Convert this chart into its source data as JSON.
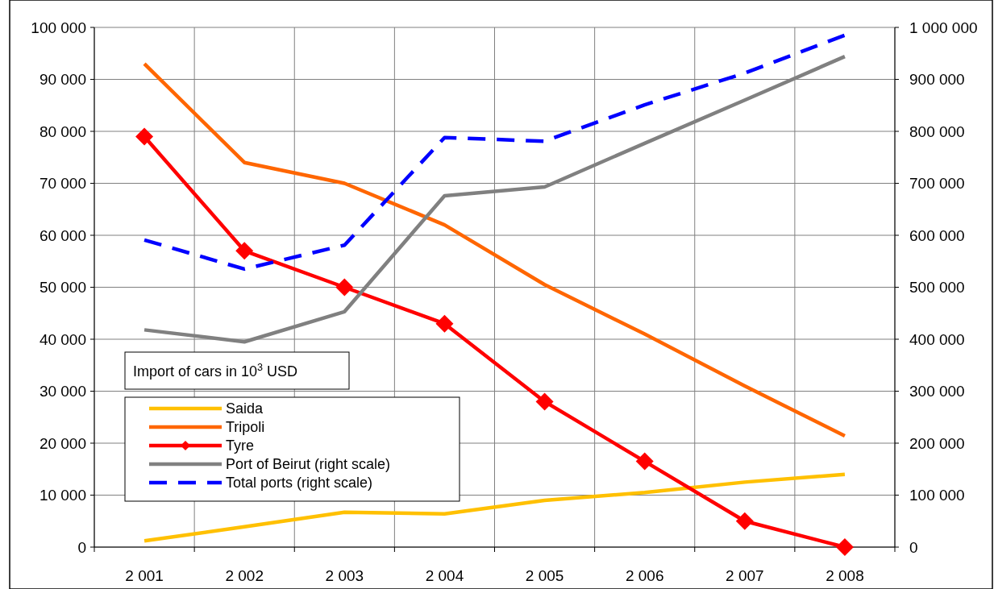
{
  "chart_data": {
    "type": "line",
    "categories": [
      "2 001",
      "2 002",
      "2 003",
      "2 004",
      "2 005",
      "2 006",
      "2 007",
      "2 008"
    ],
    "series": [
      {
        "name": "Saida",
        "color": "#ffc000",
        "values": [
          1200,
          3900,
          6700,
          6400,
          9000,
          10500,
          12500,
          14000
        ]
      },
      {
        "name": "Tripoli",
        "color": "#ff6600",
        "values": [
          93000,
          74000,
          70000,
          62000,
          50500,
          41000,
          31000,
          21400
        ]
      },
      {
        "name": "Tyre",
        "color": "#ff0000",
        "marker": "diamond",
        "values": [
          79000,
          57000,
          50000,
          43000,
          28000,
          16500,
          5000,
          0
        ]
      },
      {
        "name": "Port of Beirut (right scale)",
        "color": "#808080",
        "axis": "y2",
        "values": [
          418000,
          395000,
          453000,
          676000,
          693000,
          777000,
          860000,
          944000
        ]
      },
      {
        "name": "Total ports (right scale)",
        "color": "#0000ff",
        "axis": "y2",
        "line_style": "dashed",
        "values": [
          591000,
          535000,
          581000,
          788000,
          781000,
          851000,
          912000,
          985000
        ]
      }
    ],
    "ylim": [
      0,
      100000
    ],
    "yticks": [
      {
        "value": 0,
        "label": "0"
      },
      {
        "value": 10000,
        "label": "10 000"
      },
      {
        "value": 20000,
        "label": "20 000"
      },
      {
        "value": 30000,
        "label": "30 000"
      },
      {
        "value": 40000,
        "label": "40 000"
      },
      {
        "value": 50000,
        "label": "50 000"
      },
      {
        "value": 60000,
        "label": "60 000"
      },
      {
        "value": 70000,
        "label": "70 000"
      },
      {
        "value": 80000,
        "label": "80 000"
      },
      {
        "value": 90000,
        "label": "90 000"
      },
      {
        "value": 100000,
        "label": "100 000"
      }
    ],
    "y2lim": [
      0,
      1000000
    ],
    "y2ticks": [
      {
        "value": 0,
        "label": "0"
      },
      {
        "value": 100000,
        "label": "100 000"
      },
      {
        "value": 200000,
        "label": "200 000"
      },
      {
        "value": 300000,
        "label": "300 000"
      },
      {
        "value": 400000,
        "label": "400 000"
      },
      {
        "value": 500000,
        "label": "500 000"
      },
      {
        "value": 600000,
        "label": "600 000"
      },
      {
        "value": 700000,
        "label": "700 000"
      },
      {
        "value": 800000,
        "label": "800 000"
      },
      {
        "value": 900000,
        "label": "900 000"
      },
      {
        "value": 1000000,
        "label": "1 000 000"
      }
    ],
    "grid": true,
    "legend": "bottom left",
    "annotations": [
      "Import of cars in 10$^{3}$ USD"
    ]
  }
}
